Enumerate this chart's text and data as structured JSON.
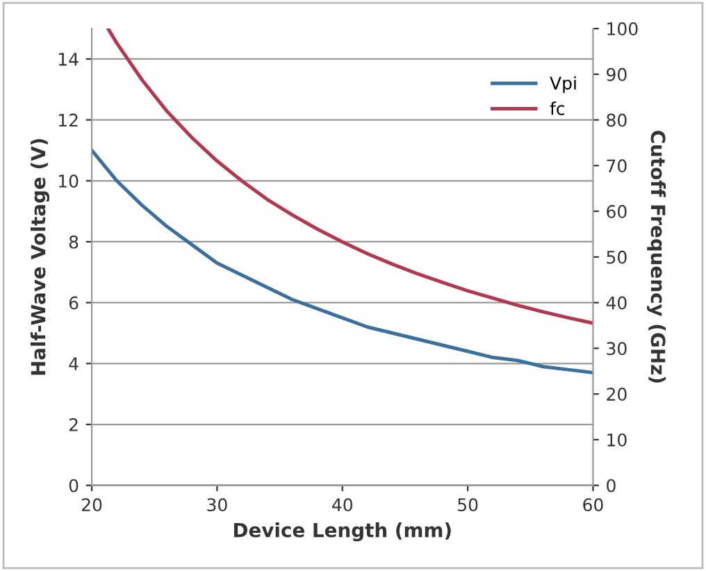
{
  "chart_data": {
    "type": "line",
    "xlabel": "Device Length (mm)",
    "ylabel": "Half-Wave Voltage (V)",
    "y2label": "Cutoff Frequency (GHz)",
    "xlim": [
      20,
      60
    ],
    "xticks": [
      20,
      30,
      40,
      50,
      60
    ],
    "ylim": [
      0,
      15
    ],
    "yticks": [
      0,
      2,
      4,
      6,
      8,
      10,
      12,
      14
    ],
    "y2lim": [
      0,
      100
    ],
    "y2ticks": [
      0,
      10,
      20,
      30,
      40,
      50,
      60,
      70,
      80,
      90,
      100
    ],
    "grid": "y",
    "legend": "top right",
    "marker": "none",
    "line_style": "solid",
    "series": [
      {
        "name": "Vpi",
        "color": "#3a6f9e",
        "x": [
          20,
          22,
          24,
          26,
          28,
          30,
          32,
          34,
          36,
          38,
          40,
          42,
          44,
          46,
          48,
          50,
          52,
          54,
          56,
          58,
          60
        ],
        "values": [
          11.0,
          10.0,
          9.2,
          8.5,
          7.9,
          7.3,
          6.9,
          6.5,
          6.1,
          5.8,
          5.5,
          5.2,
          5.0,
          4.8,
          4.6,
          4.4,
          4.2,
          4.1,
          3.9,
          3.8,
          3.7
        ]
      },
      {
        "name": "fc",
        "color": "#b0384f",
        "axis": "y2",
        "x": [
          21.3,
          22,
          24,
          26,
          28,
          30,
          32,
          34,
          36,
          38,
          40,
          42,
          44,
          46,
          48,
          50,
          52,
          54,
          56,
          58,
          60
        ],
        "values": [
          100,
          96.8,
          88.8,
          81.9,
          76.1,
          71,
          66.6,
          62.6,
          59.2,
          56.1,
          53.3,
          50.7,
          48.4,
          46.3,
          44.4,
          42.6,
          41,
          39.4,
          38,
          36.7,
          35.5
        ]
      }
    ]
  }
}
